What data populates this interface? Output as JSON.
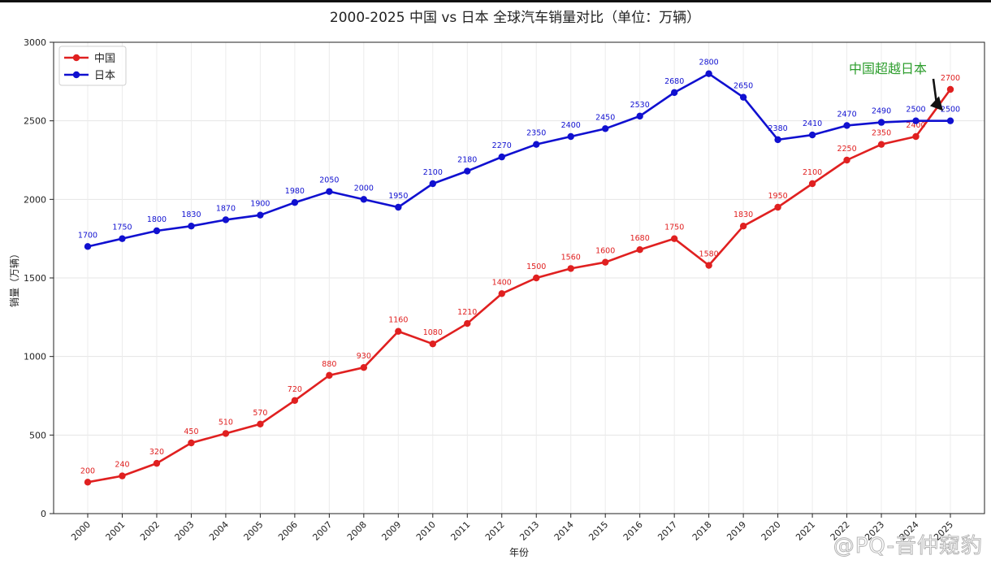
{
  "chart_data": {
    "type": "line",
    "title": "2000-2025 中国 vs 日本 全球汽车销量对比（单位：万辆）",
    "xlabel": "年份",
    "ylabel": "销量（万辆）",
    "categories": [
      "2000",
      "2001",
      "2002",
      "2003",
      "2004",
      "2005",
      "2006",
      "2007",
      "2008",
      "2009",
      "2010",
      "2011",
      "2012",
      "2013",
      "2014",
      "2015",
      "2016",
      "2017",
      "2018",
      "2019",
      "2020",
      "2021",
      "2022",
      "2023",
      "2024",
      "2025"
    ],
    "ylim": [
      0,
      3000
    ],
    "yticks": [
      0,
      500,
      1000,
      1500,
      2000,
      2500,
      3000
    ],
    "grid": true,
    "legend_position": "top-left",
    "series": [
      {
        "name": "中国",
        "color": "#e02020",
        "values": [
          200,
          240,
          320,
          450,
          510,
          570,
          720,
          880,
          930,
          1160,
          1080,
          1210,
          1400,
          1500,
          1560,
          1600,
          1680,
          1750,
          1580,
          1830,
          1950,
          2100,
          2250,
          2350,
          2400,
          2700
        ]
      },
      {
        "name": "日本",
        "color": "#1010d0",
        "values": [
          1700,
          1750,
          1800,
          1830,
          1870,
          1900,
          1980,
          2050,
          2000,
          1950,
          2100,
          2180,
          2270,
          2350,
          2400,
          2450,
          2530,
          2680,
          2800,
          2650,
          2380,
          2410,
          2470,
          2490,
          2500,
          2500
        ]
      }
    ],
    "annotation": {
      "text": "中国超越日本",
      "color": "#2e9e2e",
      "target_category": "2025",
      "target_value": 2600
    }
  },
  "watermark": "@PQ-音仲窥豹"
}
